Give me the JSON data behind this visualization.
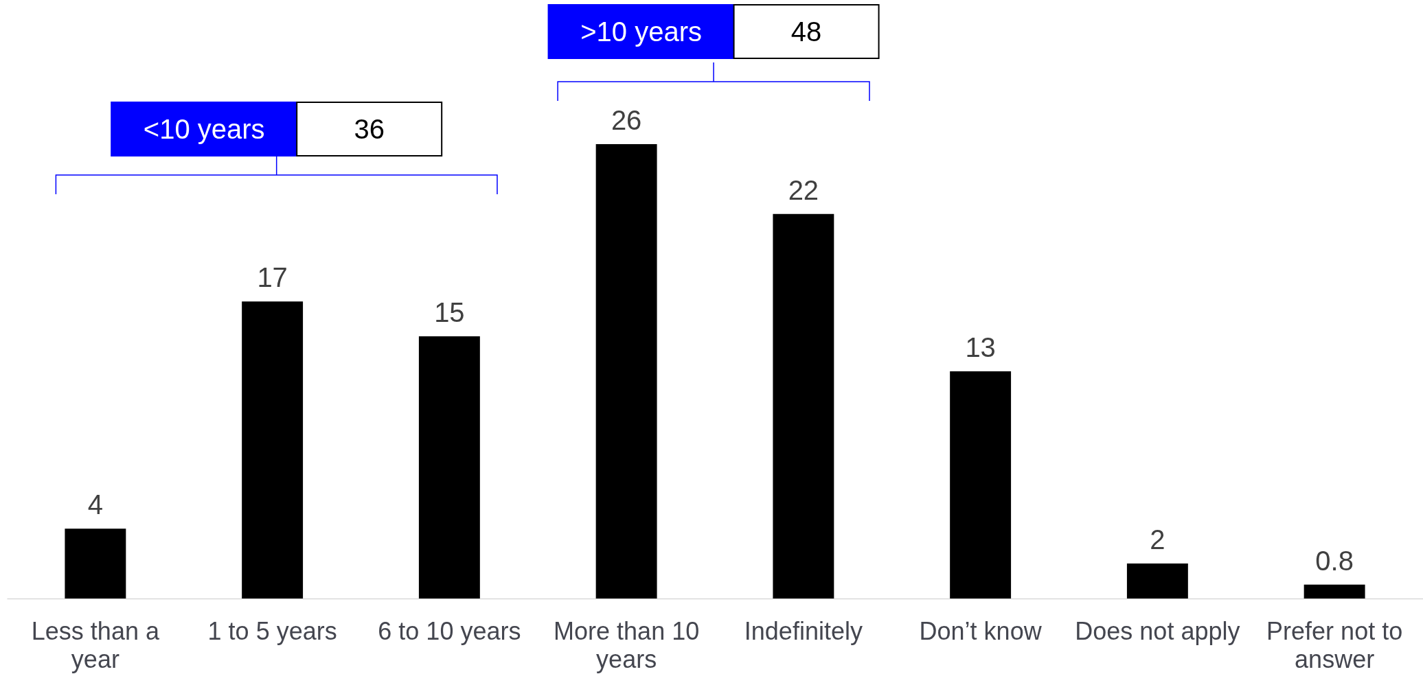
{
  "chart_data": {
    "type": "bar",
    "categories": [
      "Less than a year",
      "1 to 5 years",
      "6 to 10 years",
      "More than 10 years",
      "Indefinitely",
      "Don’t know",
      "Does not apply",
      "Prefer not to answer"
    ],
    "values": [
      4,
      17,
      15,
      26,
      22,
      13,
      2,
      0.8
    ],
    "color": "#000000",
    "data_labels": true,
    "annotations": [
      "<10 years",
      "36",
      ">10 years",
      "48"
    ]
  }
}
